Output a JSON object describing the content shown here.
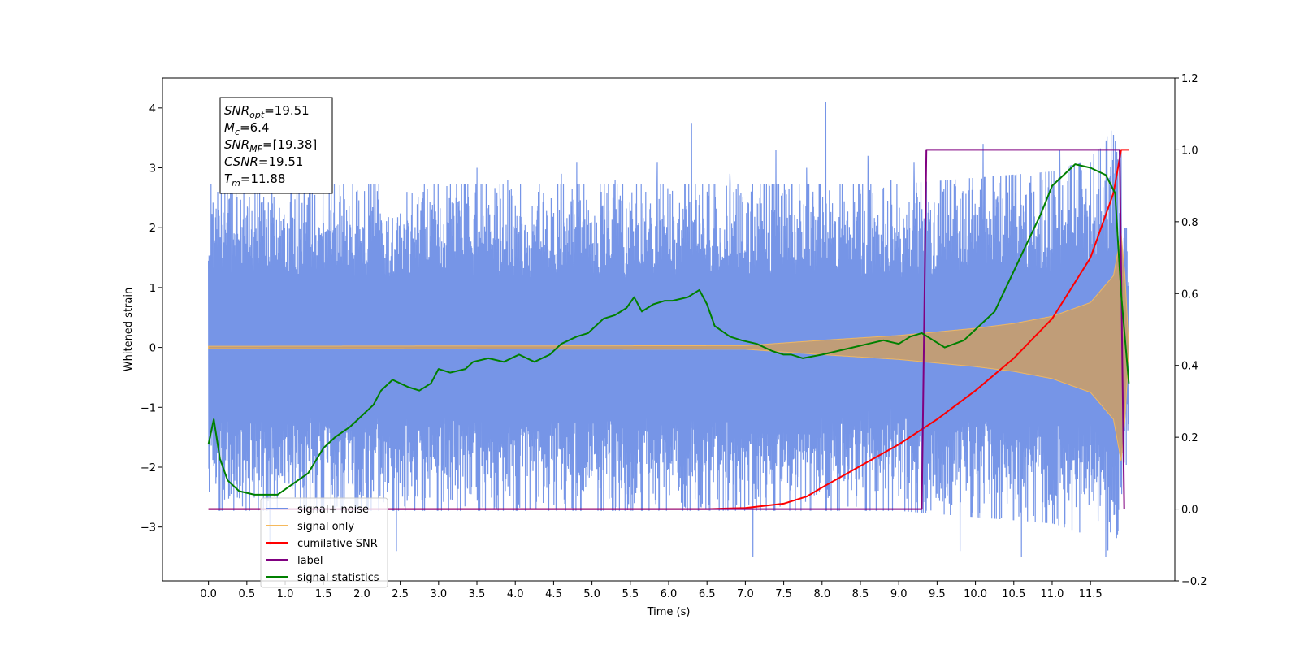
{
  "chart_data": {
    "type": "line",
    "title": "",
    "xlabel": "Time (s)",
    "ylabel": "Whitened strain",
    "xlim": [
      -0.6,
      12.6
    ],
    "ylim": [
      -3.9,
      4.5
    ],
    "y2lim": [
      -0.2,
      1.2
    ],
    "grid": false,
    "legend_position": "lower-left",
    "x_ticks": [
      "0.0",
      "0.5",
      "1.0",
      "1.5",
      "2.0",
      "2.5",
      "3.0",
      "3.5",
      "4.0",
      "4.5",
      "5.0",
      "5.5",
      "6.0",
      "6.5",
      "7.0",
      "7.5",
      "8.0",
      "8.5",
      "9.0",
      "9.5",
      "10.0",
      "10.5",
      "11.0",
      "11.5"
    ],
    "y_ticks": [
      "4",
      "3",
      "2",
      "1",
      "0",
      "−1",
      "−2",
      "−3"
    ],
    "y2_ticks": [
      "1.2",
      "1.0",
      "0.8",
      "0.6",
      "0.4",
      "0.2",
      "0.0",
      "−0.2"
    ],
    "annotation": [
      {
        "base": "SNR",
        "sub": "opt",
        "value": "=19.51"
      },
      {
        "base": "M",
        "sub": "c",
        "value": "=6.4"
      },
      {
        "base": "SNR",
        "sub": "MF",
        "value": "=[19.38]"
      },
      {
        "base": "CSNR",
        "sub": "",
        "value": "=19.51"
      },
      {
        "base": "T",
        "sub": "m",
        "value": "=11.88"
      }
    ],
    "series": [
      {
        "name": "signal+ noise",
        "color": "#6f8fe6",
        "axis": "left",
        "x_range": [
          0.0,
          12.0
        ],
        "envelope": {
          "x": [
            0.0,
            2.0,
            4.0,
            6.0,
            8.0,
            9.0,
            10.0,
            11.0,
            11.5,
            11.8,
            11.9,
            12.0
          ],
          "upper": [
            2.6,
            2.6,
            2.6,
            2.6,
            2.6,
            2.6,
            2.7,
            2.8,
            3.0,
            3.5,
            2.6,
            1.6
          ],
          "lower": [
            -2.6,
            -2.6,
            -2.6,
            -2.6,
            -2.6,
            -2.6,
            -2.7,
            -2.8,
            -3.0,
            -3.4,
            -2.6,
            -1.5
          ]
        },
        "peaks": [
          [
            0.05,
            1.8
          ],
          [
            0.12,
            2.6
          ],
          [
            0.5,
            2.2
          ],
          [
            0.8,
            -3.3
          ],
          [
            1.3,
            2.5
          ],
          [
            1.8,
            2.3
          ],
          [
            2.1,
            2.2
          ],
          [
            2.45,
            -3.4
          ],
          [
            2.8,
            2.6
          ],
          [
            3.5,
            3.0
          ],
          [
            3.9,
            2.8
          ],
          [
            4.3,
            2.6
          ],
          [
            4.6,
            2.9
          ],
          [
            4.8,
            3.1
          ],
          [
            5.3,
            2.8
          ],
          [
            5.7,
            2.6
          ],
          [
            5.85,
            3.1
          ],
          [
            6.3,
            3.75
          ],
          [
            6.8,
            2.9
          ],
          [
            7.1,
            -3.5
          ],
          [
            7.4,
            3.3
          ],
          [
            7.8,
            3.0
          ],
          [
            8.05,
            4.1
          ],
          [
            8.6,
            3.2
          ],
          [
            8.9,
            2.8
          ],
          [
            9.2,
            3.1
          ],
          [
            9.8,
            -3.4
          ],
          [
            10.1,
            3.4
          ],
          [
            10.6,
            -3.5
          ],
          [
            11.1,
            3.3
          ],
          [
            11.5,
            3.1
          ],
          [
            11.7,
            -3.5
          ],
          [
            11.8,
            3.55
          ],
          [
            11.9,
            3.3
          ]
        ]
      },
      {
        "name": "signal only",
        "color": "#f5b95c",
        "axis": "left",
        "x_range": [
          0.0,
          12.0
        ],
        "amplitude": {
          "x": [
            0.0,
            7.0,
            8.0,
            9.0,
            10.0,
            10.5,
            11.0,
            11.5,
            11.8,
            11.9,
            11.95,
            12.0
          ],
          "value": [
            0.02,
            0.03,
            0.12,
            0.2,
            0.32,
            0.4,
            0.52,
            0.75,
            1.2,
            1.9,
            1.2,
            0.0
          ]
        }
      },
      {
        "name": "cumilative SNR",
        "color": "#ff0000",
        "axis": "right",
        "x": [
          0.0,
          6.5,
          7.0,
          7.5,
          7.8,
          8.0,
          8.5,
          9.0,
          9.5,
          10.0,
          10.5,
          11.0,
          11.5,
          11.8,
          11.9,
          12.0
        ],
        "y": [
          0.0,
          0.0,
          0.003,
          0.015,
          0.035,
          0.06,
          0.12,
          0.18,
          0.25,
          0.33,
          0.42,
          0.53,
          0.7,
          0.88,
          1.0,
          1.0
        ]
      },
      {
        "name": "label",
        "color": "#800080",
        "axis": "right",
        "x": [
          0.0,
          9.3,
          9.36,
          11.88,
          11.94
        ],
        "y": [
          0.0,
          0.0,
          1.0,
          1.0,
          0.0
        ]
      },
      {
        "name": "signal statistics",
        "color": "#008000",
        "axis": "right",
        "x": [
          0.0,
          0.07,
          0.15,
          0.25,
          0.4,
          0.6,
          0.9,
          1.1,
          1.3,
          1.5,
          1.65,
          1.85,
          2.0,
          2.15,
          2.25,
          2.4,
          2.6,
          2.75,
          2.9,
          3.0,
          3.15,
          3.35,
          3.45,
          3.65,
          3.85,
          4.05,
          4.25,
          4.45,
          4.6,
          4.8,
          4.95,
          5.15,
          5.3,
          5.45,
          5.55,
          5.65,
          5.8,
          5.95,
          6.05,
          6.25,
          6.4,
          6.5,
          6.6,
          6.8,
          6.95,
          7.15,
          7.35,
          7.5,
          7.6,
          7.75,
          8.0,
          8.2,
          8.4,
          8.6,
          8.8,
          9.0,
          9.15,
          9.3,
          9.45,
          9.6,
          9.85,
          10.0,
          10.25,
          10.45,
          10.65,
          10.85,
          11.0,
          11.15,
          11.3,
          11.5,
          11.7,
          11.82,
          11.9,
          12.0
        ],
        "y": [
          0.18,
          0.25,
          0.14,
          0.08,
          0.05,
          0.04,
          0.04,
          0.07,
          0.1,
          0.17,
          0.2,
          0.23,
          0.26,
          0.29,
          0.33,
          0.36,
          0.34,
          0.33,
          0.35,
          0.39,
          0.38,
          0.39,
          0.41,
          0.42,
          0.41,
          0.43,
          0.41,
          0.43,
          0.46,
          0.48,
          0.49,
          0.53,
          0.54,
          0.56,
          0.59,
          0.55,
          0.57,
          0.58,
          0.58,
          0.59,
          0.61,
          0.57,
          0.51,
          0.48,
          0.47,
          0.46,
          0.44,
          0.43,
          0.43,
          0.42,
          0.43,
          0.44,
          0.45,
          0.46,
          0.47,
          0.46,
          0.48,
          0.49,
          0.47,
          0.45,
          0.47,
          0.5,
          0.55,
          0.64,
          0.73,
          0.82,
          0.9,
          0.93,
          0.96,
          0.95,
          0.93,
          0.88,
          0.6,
          0.35
        ]
      }
    ]
  }
}
